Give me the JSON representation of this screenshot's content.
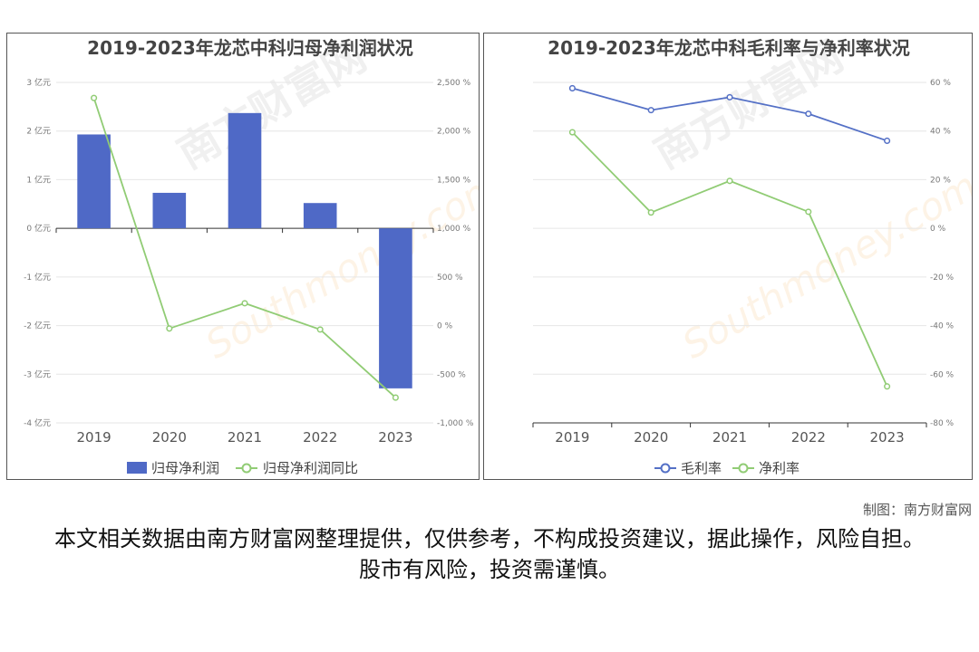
{
  "left_chart": {
    "title": "2019-2023年龙芯中科归母净利润状况",
    "categories": [
      "2019",
      "2020",
      "2021",
      "2022",
      "2023"
    ],
    "left_ticks": [
      "3 亿元",
      "2 亿元",
      "1 亿元",
      "0 亿元",
      "-1 亿元",
      "-2 亿元",
      "-3 亿元",
      "-4 亿元"
    ],
    "right_ticks": [
      "2,500 %",
      "2,000 %",
      "1,500 %",
      "1,000 %",
      "500 %",
      "0 %",
      "-500 %",
      "-1,000 %"
    ],
    "legend": {
      "bar": "归母净利润",
      "line": "归母净利润同比"
    },
    "colors": {
      "bar": "#4f69c6",
      "line": "#91cc75"
    }
  },
  "right_chart": {
    "title": "2019-2023年龙芯中科毛利率与净利率状况",
    "categories": [
      "2019",
      "2020",
      "2021",
      "2022",
      "2023"
    ],
    "right_ticks": [
      "60 %",
      "40 %",
      "20 %",
      "0 %",
      "-20 %",
      "-40 %",
      "-60 %",
      "-80 %"
    ],
    "legend": {
      "gross": "毛利率",
      "net": "净利率"
    },
    "colors": {
      "gross": "#5470c6",
      "net": "#91cc75"
    }
  },
  "chart_data": [
    {
      "type": "bar",
      "title": "2019-2023年龙芯中科归母净利润状况",
      "categories": [
        "2019",
        "2020",
        "2021",
        "2022",
        "2023"
      ],
      "series": [
        {
          "name": "归母净利润",
          "type": "bar",
          "axis": "left",
          "unit": "亿元",
          "values": [
            1.93,
            0.73,
            2.37,
            0.52,
            -3.29
          ]
        },
        {
          "name": "归母净利润同比",
          "type": "line",
          "axis": "right",
          "unit": "%",
          "values": [
            2340,
            -30,
            230,
            -40,
            -740
          ]
        }
      ],
      "ylim_left": [
        -4,
        3
      ],
      "ylim_right": [
        -1000,
        2500
      ],
      "legend": "bottom-center",
      "grid": true
    },
    {
      "type": "line",
      "title": "2019-2023年龙芯中科毛利率与净利率状况",
      "categories": [
        "2019",
        "2020",
        "2021",
        "2022",
        "2023"
      ],
      "series": [
        {
          "name": "毛利率",
          "unit": "%",
          "values": [
            57.6,
            48.6,
            53.9,
            47.1,
            36
          ]
        },
        {
          "name": "净利率",
          "unit": "%",
          "values": [
            39.5,
            6.5,
            19.5,
            6.8,
            -65
          ]
        }
      ],
      "ylim": [
        -80,
        60
      ],
      "legend": "bottom-center",
      "grid": true
    }
  ],
  "watermark": {
    "cn": "南方财富网",
    "en": "Southmoney.com"
  },
  "credit": "制图：南方财富网",
  "disclaimer": "本文相关数据由南方财富网整理提供，仅供参考，不构成投资建议，据此操作，风险自担。股市有风险，投资需谨慎。"
}
